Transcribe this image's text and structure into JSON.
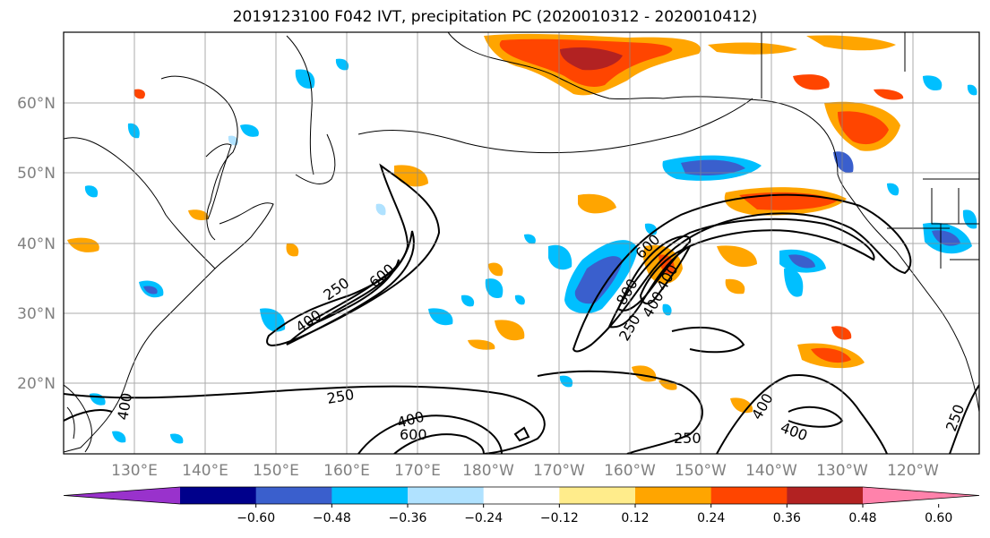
{
  "title": "2019123100 F042 IVT, precipitation PC (2020010312 - 2020010412)",
  "lat_labels": [
    "60°N",
    "50°N",
    "40°N",
    "30°N",
    "20°N"
  ],
  "lon_labels": [
    "130°E",
    "140°E",
    "150°E",
    "160°E",
    "170°E",
    "180°W",
    "170°W",
    "160°W",
    "150°W",
    "140°W",
    "130°W",
    "120°W"
  ],
  "colorbar": {
    "colors": [
      "#9932cc",
      "#00008b",
      "#3a5fcd",
      "#00bfff",
      "#b0e2ff",
      "#ffffff",
      "#ffec8b",
      "#ffa500",
      "#ff4500",
      "#b22222",
      "#ff82ab"
    ],
    "labels": [
      "−0.60",
      "−0.48",
      "−0.36",
      "−0.24",
      "−0.12",
      "0.12",
      "0.24",
      "0.36",
      "0.48",
      "0.60"
    ]
  },
  "contour_labels": [
    "250",
    "400",
    "600",
    "800",
    "250",
    "400",
    "600",
    "400",
    "250",
    "400",
    "600",
    "400",
    "400",
    "250",
    "250"
  ]
}
